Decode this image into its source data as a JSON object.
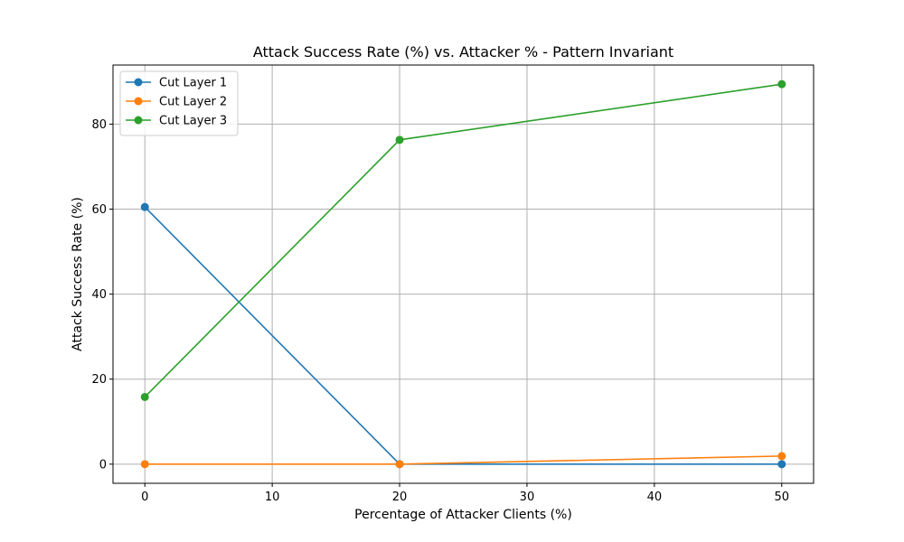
{
  "chart_data": {
    "type": "line",
    "title": "Attack Success Rate (%) vs. Attacker % - Pattern Invariant",
    "xlabel": "Percentage of Attacker Clients (%)",
    "ylabel": "Attack Success Rate (%)",
    "x": [
      0,
      20,
      50
    ],
    "xlim": [
      -2.5,
      52.5
    ],
    "ylim": [
      -4.5,
      93.9
    ],
    "xticks": [
      0,
      10,
      20,
      30,
      40,
      50
    ],
    "yticks": [
      0,
      20,
      40,
      60,
      80
    ],
    "grid": true,
    "legend_position": "upper-left",
    "series": [
      {
        "name": "Cut Layer 1",
        "color": "#1f77b4",
        "values": [
          60.5,
          0.0,
          0.0
        ]
      },
      {
        "name": "Cut Layer 2",
        "color": "#ff7f0e",
        "values": [
          0.0,
          0.0,
          1.9
        ]
      },
      {
        "name": "Cut Layer 3",
        "color": "#2ca02c",
        "values": [
          15.8,
          76.3,
          89.4
        ]
      }
    ]
  }
}
